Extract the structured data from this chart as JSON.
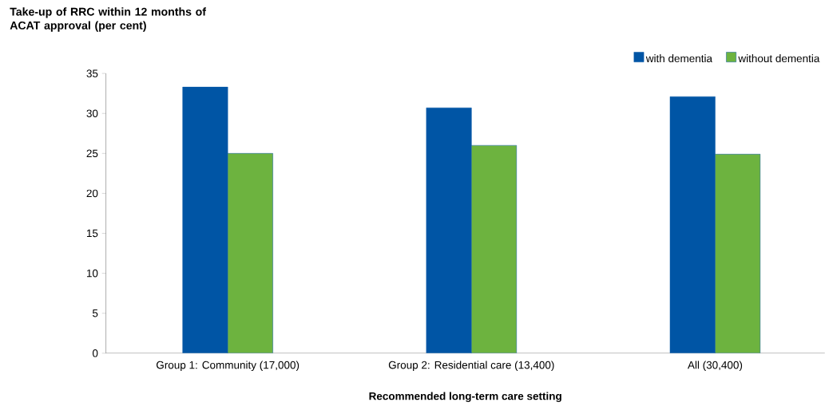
{
  "chart_data": {
    "type": "bar",
    "title": "Take-up of RRC within 12 months of ACAT  approval (per cent)",
    "xlabel": "Recommended long-term care setting",
    "categories": [
      "Group 1: Community (17,000)",
      "Group 2: Residential care (13,400)",
      "All (30,400)"
    ],
    "series": [
      {
        "name": "with dementia",
        "color": "#0055a5",
        "values": [
          33.3,
          30.7,
          32.1
        ]
      },
      {
        "name": "without dementia",
        "color": "#6db33f",
        "values": [
          25.0,
          26.0,
          24.9
        ]
      }
    ],
    "ylim": [
      0,
      35
    ],
    "yticks": [
      0,
      5,
      10,
      15,
      20,
      25,
      30,
      35
    ],
    "legend": "top right"
  }
}
